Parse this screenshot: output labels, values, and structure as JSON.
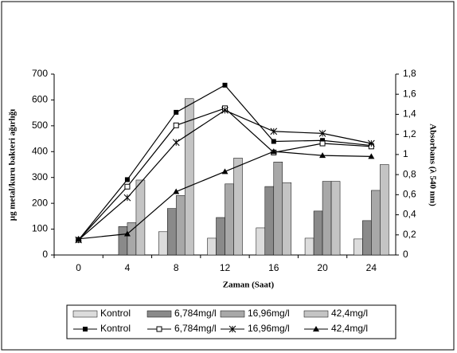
{
  "chart_data": {
    "type": "bar",
    "x_label": "Zaman (Saat)",
    "y_label": "µg metal/kuru bakteri ağırlığı",
    "y2_label": "Absorbans (λ 540 nm)",
    "categories": [
      "0",
      "4",
      "8",
      "12",
      "16",
      "20",
      "24"
    ],
    "ylim": [
      0,
      700
    ],
    "yticks": [
      0,
      100,
      200,
      300,
      400,
      500,
      600,
      700
    ],
    "y2lim": [
      0,
      1.8
    ],
    "y2ticks": [
      0,
      {
        "value": 0.2,
        "label": "0,2"
      },
      {
        "value": 0.4,
        "label": "0,4"
      },
      {
        "value": 0.6,
        "label": "0,6"
      },
      {
        "value": 0.8,
        "label": "0,8"
      },
      1,
      {
        "value": 1.2,
        "label": "1,2"
      },
      {
        "value": 1.4,
        "label": "1,4"
      },
      {
        "value": 1.6,
        "label": "1,6"
      },
      {
        "value": 1.8,
        "label": "1,8"
      }
    ],
    "legend": "bottom",
    "series": [
      {
        "name": "Kontrol",
        "type": "bar",
        "color": "#dcdcdc",
        "values": [
          0,
          0,
          90,
          65,
          105,
          65,
          62
        ]
      },
      {
        "name": "6,784mg/l",
        "type": "bar",
        "color": "#8a8a8a",
        "values": [
          0,
          110,
          180,
          145,
          265,
          170,
          133
        ]
      },
      {
        "name": "16,96mg/l",
        "type": "bar",
        "color": "#a8a8a8",
        "values": [
          0,
          125,
          230,
          275,
          360,
          285,
          250
        ]
      },
      {
        "name": "42,4mg/l",
        "type": "bar",
        "color": "#c4c4c4",
        "values": [
          0,
          290,
          605,
          375,
          280,
          285,
          350
        ]
      },
      {
        "name": "Kontrol",
        "type": "line",
        "axis": "y2",
        "color": "#000000",
        "marker": "square",
        "values": [
          0.15,
          0.75,
          1.42,
          1.69,
          1.13,
          1.14,
          1.09
        ]
      },
      {
        "name": "6,784mg/l",
        "type": "line",
        "axis": "y2",
        "color": "#000000",
        "marker": "square-open",
        "values": [
          0.15,
          0.68,
          1.29,
          1.46,
          1.02,
          1.11,
          1.08
        ]
      },
      {
        "name": "16,96mg/l",
        "type": "line",
        "axis": "y2",
        "color": "#000000",
        "marker": "star",
        "values": [
          0.15,
          0.57,
          1.12,
          1.44,
          1.23,
          1.21,
          1.11
        ]
      },
      {
        "name": "42,4mg/l",
        "type": "line",
        "axis": "y2",
        "color": "#000000",
        "marker": "triangle",
        "values": [
          0.16,
          0.21,
          0.63,
          0.83,
          1.03,
          0.99,
          0.98
        ]
      }
    ]
  }
}
